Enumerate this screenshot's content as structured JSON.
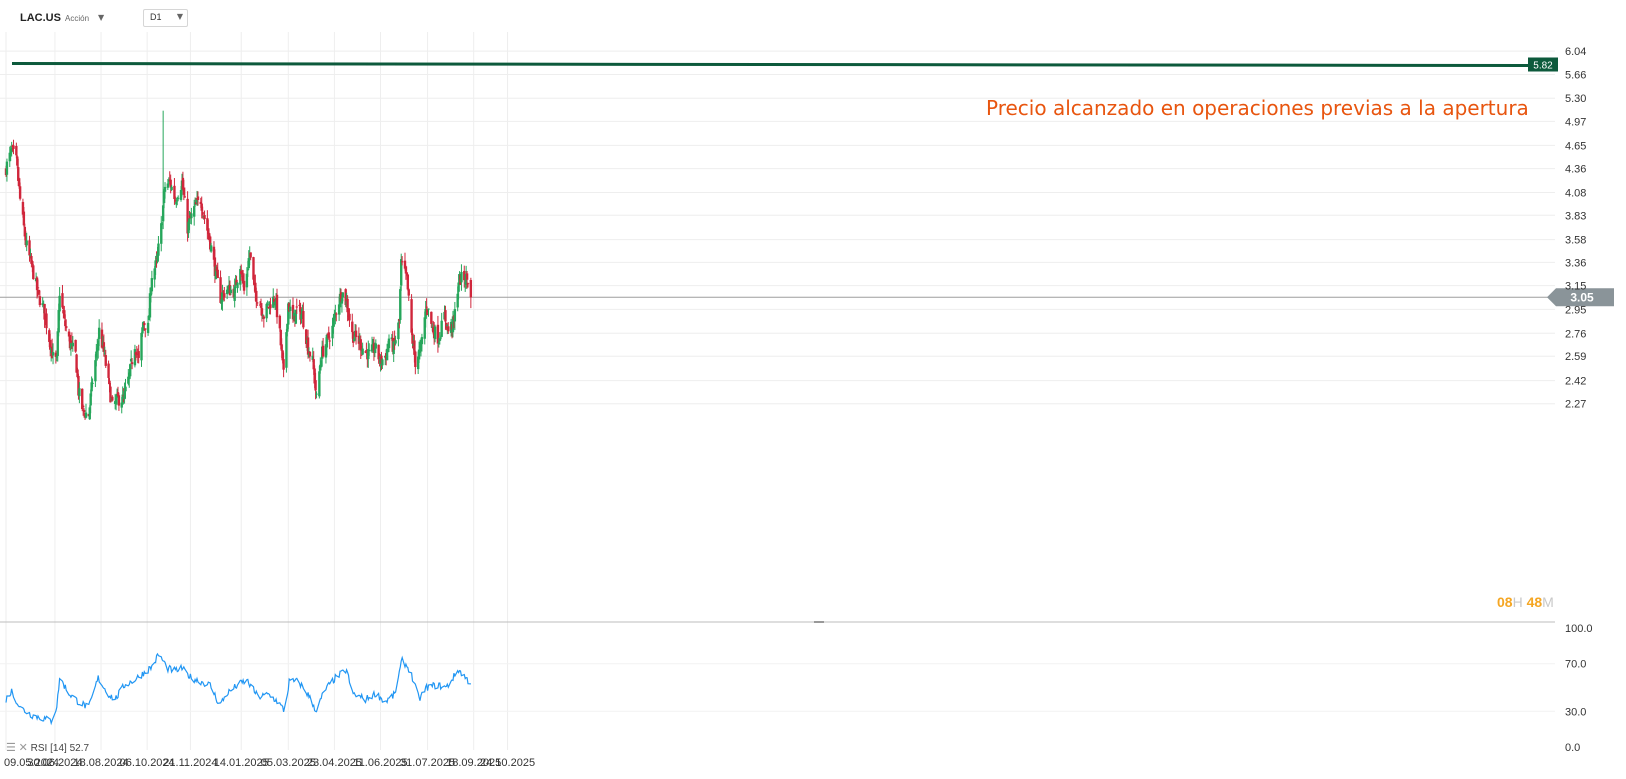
{
  "header": {
    "symbol": "LAC.US",
    "type": "Acción",
    "timeframe": "D1"
  },
  "annotation": "Precio alcanzado en operaciones previas a la apertura",
  "countdown": {
    "hours": "08",
    "h": "H",
    "minutes": "48",
    "m": "M"
  },
  "rsi_label": {
    "name": "RSI",
    "period": "[14]",
    "value": "52.7"
  },
  "colors": {
    "up": "#26a65b",
    "down": "#d0263b",
    "level": "#0d5a3c",
    "annotation": "#e8550f",
    "rsi": "#2196f3",
    "price_tag": "#8a9499"
  },
  "chart_data": [
    {
      "type": "candlestick",
      "title": "LAC.US",
      "y_ticks": [
        "6.04",
        "5.66",
        "5.30",
        "4.97",
        "4.65",
        "4.36",
        "4.08",
        "3.83",
        "3.58",
        "3.36",
        "3.15",
        "2.95",
        "2.76",
        "2.59",
        "2.42",
        "2.27"
      ],
      "x_ticks": [
        "09.05.2024",
        "30.06.2024",
        "18.08.2024",
        "06.10.2024",
        "21.11.2024",
        "14.01.2025",
        "05.03.2025",
        "23.04.2025",
        "11.06.2025",
        "31.07.2025",
        "18.09.2025",
        "24.10.2025"
      ],
      "level_line": {
        "value": 5.82,
        "label": "5.82"
      },
      "last_price": {
        "value": 3.05,
        "label": "3.05"
      },
      "anchors": [
        [
          "2024-05-09",
          4.37
        ],
        [
          "2024-05-15",
          4.58
        ],
        [
          "2024-05-20",
          4.45
        ],
        [
          "2024-05-24",
          4.0
        ],
        [
          "2024-05-30",
          3.55
        ],
        [
          "2024-06-06",
          3.3
        ],
        [
          "2024-06-12",
          3.08
        ],
        [
          "2024-06-18",
          2.95
        ],
        [
          "2024-06-24",
          2.72
        ],
        [
          "2024-06-28",
          2.58
        ],
        [
          "2024-07-02",
          2.55
        ],
        [
          "2024-07-05",
          3.1
        ],
        [
          "2024-07-10",
          2.85
        ],
        [
          "2024-07-16",
          2.68
        ],
        [
          "2024-07-22",
          2.6
        ],
        [
          "2024-07-25",
          2.35
        ],
        [
          "2024-07-30",
          2.22
        ],
        [
          "2024-08-05",
          2.2
        ],
        [
          "2024-08-09",
          2.42
        ],
        [
          "2024-08-13",
          2.6
        ],
        [
          "2024-08-16",
          2.78
        ],
        [
          "2024-08-21",
          2.62
        ],
        [
          "2024-08-26",
          2.4
        ],
        [
          "2024-08-30",
          2.25
        ],
        [
          "2024-09-05",
          2.3
        ],
        [
          "2024-09-11",
          2.3
        ],
        [
          "2024-09-17",
          2.45
        ],
        [
          "2024-09-23",
          2.68
        ],
        [
          "2024-09-27",
          2.55
        ],
        [
          "2024-10-02",
          2.85
        ],
        [
          "2024-10-07",
          2.8
        ],
        [
          "2024-10-11",
          3.25
        ],
        [
          "2024-10-16",
          3.35
        ],
        [
          "2024-10-21",
          3.7
        ],
        [
          "2024-10-25",
          4.15
        ],
        [
          "2024-10-30",
          4.2
        ],
        [
          "2024-11-05",
          4.0
        ],
        [
          "2024-11-12",
          4.2
        ],
        [
          "2024-11-18",
          3.7
        ],
        [
          "2024-11-25",
          3.9
        ],
        [
          "2024-12-02",
          4.0
        ],
        [
          "2024-12-06",
          3.8
        ],
        [
          "2024-12-11",
          3.6
        ],
        [
          "2024-12-17",
          3.3
        ],
        [
          "2024-12-23",
          3.05
        ],
        [
          "2024-12-30",
          3.12
        ],
        [
          "2025-01-07",
          3.1
        ],
        [
          "2025-01-13",
          3.35
        ],
        [
          "2025-01-17",
          3.1
        ],
        [
          "2025-01-23",
          3.45
        ],
        [
          "2025-01-28",
          3.1
        ],
        [
          "2025-02-03",
          3.0
        ],
        [
          "2025-02-07",
          2.9
        ],
        [
          "2025-02-13",
          3.0
        ],
        [
          "2025-02-19",
          3.05
        ],
        [
          "2025-02-24",
          2.75
        ],
        [
          "2025-02-28",
          2.45
        ],
        [
          "2025-03-05",
          3.0
        ],
        [
          "2025-03-10",
          2.85
        ],
        [
          "2025-03-14",
          2.95
        ],
        [
          "2025-03-20",
          2.9
        ],
        [
          "2025-03-26",
          2.65
        ],
        [
          "2025-03-31",
          2.55
        ],
        [
          "2025-04-04",
          2.3
        ],
        [
          "2025-04-09",
          2.6
        ],
        [
          "2025-04-15",
          2.7
        ],
        [
          "2025-04-21",
          2.8
        ],
        [
          "2025-04-25",
          2.95
        ],
        [
          "2025-05-01",
          3.1
        ],
        [
          "2025-05-06",
          3.0
        ],
        [
          "2025-05-12",
          2.75
        ],
        [
          "2025-05-19",
          2.7
        ],
        [
          "2025-05-23",
          2.65
        ],
        [
          "2025-05-30",
          2.6
        ],
        [
          "2025-06-05",
          2.65
        ],
        [
          "2025-06-11",
          2.55
        ],
        [
          "2025-06-17",
          2.6
        ],
        [
          "2025-06-20",
          2.72
        ],
        [
          "2025-06-25",
          2.65
        ],
        [
          "2025-07-01",
          2.85
        ],
        [
          "2025-07-03",
          3.35
        ],
        [
          "2025-07-09",
          3.2
        ],
        [
          "2025-07-14",
          2.75
        ],
        [
          "2025-07-18",
          2.55
        ],
        [
          "2025-07-24",
          2.65
        ],
        [
          "2025-07-30",
          3.0
        ],
        [
          "2025-08-05",
          2.8
        ],
        [
          "2025-08-12",
          2.72
        ],
        [
          "2025-08-18",
          2.9
        ],
        [
          "2025-08-22",
          2.78
        ],
        [
          "2025-08-28",
          2.85
        ],
        [
          "2025-09-02",
          3.2
        ],
        [
          "2025-09-08",
          3.22
        ],
        [
          "2025-09-12",
          3.2
        ],
        [
          "2025-09-15",
          3.05
        ]
      ]
    },
    {
      "type": "line",
      "name": "RSI [14]",
      "y_ticks": [
        "100.0",
        "70.0",
        "30.0",
        "0.0"
      ],
      "ylim": [
        0,
        100
      ],
      "last_value": 52.7,
      "anchors": [
        [
          "2024-05-09",
          40
        ],
        [
          "2024-05-15",
          47
        ],
        [
          "2024-05-24",
          33
        ],
        [
          "2024-06-05",
          27
        ],
        [
          "2024-06-18",
          24
        ],
        [
          "2024-06-26",
          22
        ],
        [
          "2024-07-02",
          34
        ],
        [
          "2024-07-05",
          58
        ],
        [
          "2024-07-15",
          45
        ],
        [
          "2024-07-25",
          38
        ],
        [
          "2024-08-05",
          33
        ],
        [
          "2024-08-15",
          58
        ],
        [
          "2024-08-25",
          45
        ],
        [
          "2024-09-02",
          40
        ],
        [
          "2024-09-12",
          52
        ],
        [
          "2024-09-22",
          56
        ],
        [
          "2024-10-02",
          62
        ],
        [
          "2024-10-12",
          68
        ],
        [
          "2024-10-18",
          78
        ],
        [
          "2024-10-28",
          66
        ],
        [
          "2024-11-05",
          64
        ],
        [
          "2024-11-12",
          66
        ],
        [
          "2024-11-22",
          58
        ],
        [
          "2024-12-02",
          55
        ],
        [
          "2024-12-12",
          52
        ],
        [
          "2024-12-22",
          35
        ],
        [
          "2024-12-30",
          45
        ],
        [
          "2025-01-10",
          52
        ],
        [
          "2025-01-20",
          56
        ],
        [
          "2025-02-01",
          42
        ],
        [
          "2025-02-12",
          44
        ],
        [
          "2025-02-22",
          38
        ],
        [
          "2025-03-01",
          30
        ],
        [
          "2025-03-06",
          55
        ],
        [
          "2025-03-16",
          55
        ],
        [
          "2025-03-26",
          44
        ],
        [
          "2025-04-04",
          30
        ],
        [
          "2025-04-12",
          47
        ],
        [
          "2025-04-24",
          58
        ],
        [
          "2025-05-06",
          65
        ],
        [
          "2025-05-12",
          45
        ],
        [
          "2025-05-26",
          40
        ],
        [
          "2025-06-06",
          45
        ],
        [
          "2025-06-16",
          38
        ],
        [
          "2025-06-26",
          44
        ],
        [
          "2025-07-04",
          73
        ],
        [
          "2025-07-12",
          65
        ],
        [
          "2025-07-22",
          40
        ],
        [
          "2025-07-30",
          50
        ],
        [
          "2025-08-10",
          52
        ],
        [
          "2025-08-20",
          50
        ],
        [
          "2025-09-02",
          65
        ],
        [
          "2025-09-15",
          53
        ]
      ]
    }
  ]
}
